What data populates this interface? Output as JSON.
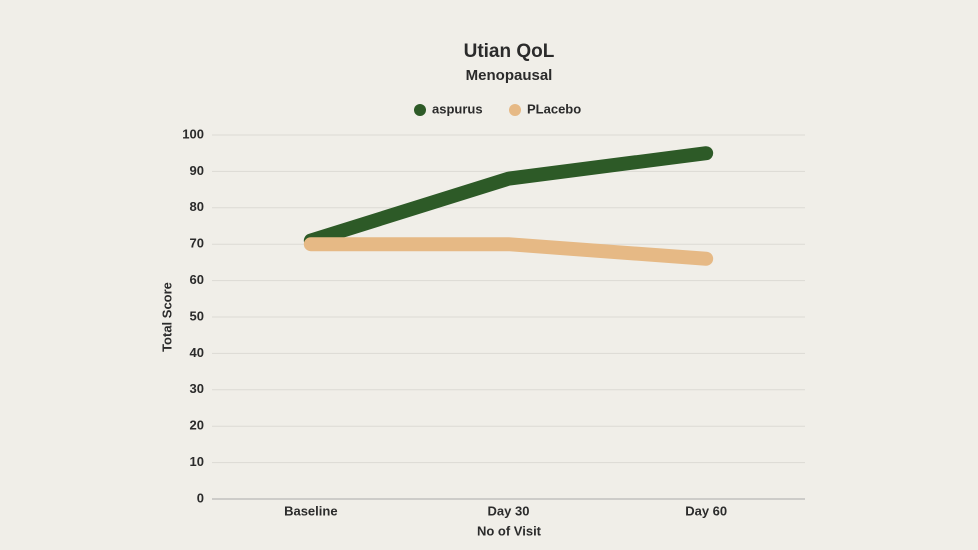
{
  "chart_data": {
    "type": "line",
    "title": "Utian QoL",
    "subtitle": "Menopausal",
    "x_label": "No of Visit",
    "y_label": "Total Score",
    "categories": [
      "Baseline",
      "Day 30",
      "Day 60"
    ],
    "series": [
      {
        "name": "aspurus",
        "color": "#2d5a27",
        "values": [
          71,
          88,
          95
        ]
      },
      {
        "name": "PLacebo",
        "color": "#e6b985",
        "values": [
          70,
          70,
          66
        ]
      }
    ],
    "ylim": [
      0,
      100
    ],
    "yticks": [
      0,
      10,
      20,
      30,
      40,
      50,
      60,
      70,
      80,
      90,
      100
    ],
    "grid": true,
    "legend": "top"
  }
}
